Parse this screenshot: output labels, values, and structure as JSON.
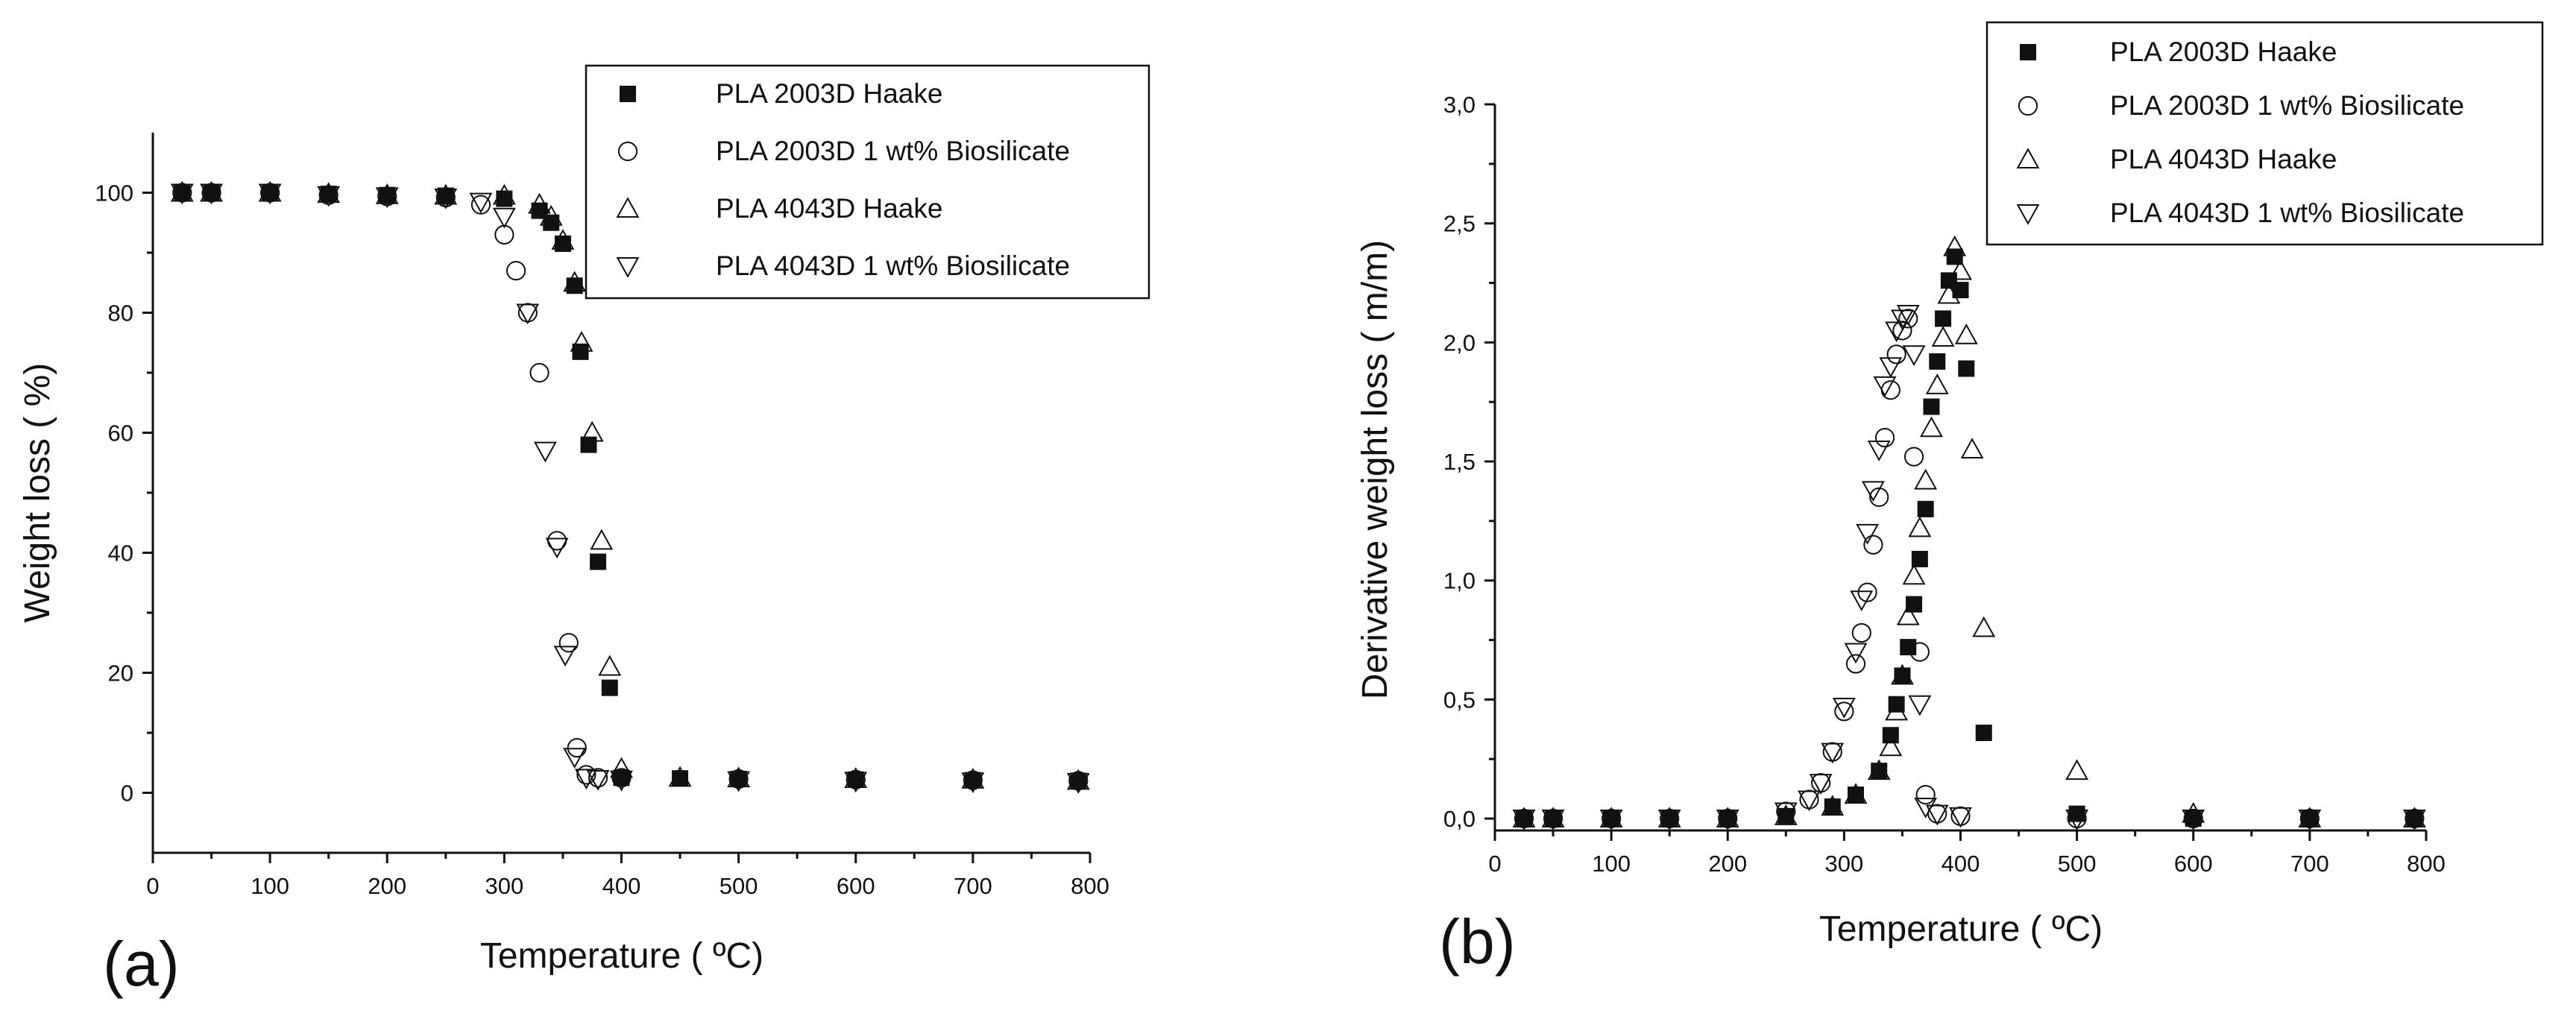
{
  "chart_data": [
    {
      "panel_label": "(a)",
      "type": "scatter",
      "xlabel": "Temperature  ( ºC)",
      "ylabel": "Weight loss  ( %)",
      "xlim": [
        0,
        800
      ],
      "ylim": [
        -10,
        110
      ],
      "x_ticks": [
        "0",
        "100",
        "200",
        "300",
        "400",
        "500",
        "600",
        "700",
        "800"
      ],
      "y_ticks": [
        "0",
        "20",
        "40",
        "60",
        "80",
        "100"
      ],
      "y_tick_values": [
        0,
        20,
        40,
        60,
        80,
        100
      ],
      "grid": false,
      "legend_position": "top-right",
      "series": [
        {
          "name": "PLA 2003D Haake",
          "marker": "filled-square",
          "x": [
            25,
            50,
            100,
            150,
            200,
            250,
            300,
            330,
            340,
            350,
            360,
            365,
            372,
            380,
            390,
            400,
            450,
            500,
            600,
            700,
            790
          ],
          "y": [
            100,
            100,
            100,
            99.8,
            99.6,
            99.5,
            99,
            97,
            95,
            91.5,
            84.5,
            73.5,
            58,
            38.5,
            17.5,
            2.5,
            2.4,
            2.3,
            2.2,
            2.1,
            2
          ]
        },
        {
          "name": "PLA 2003D 1 wt% Biosilicate",
          "marker": "open-circle",
          "x": [
            25,
            50,
            100,
            150,
            200,
            250,
            280,
            300,
            310,
            320,
            330,
            345,
            355,
            362,
            370,
            380,
            400,
            500,
            600,
            700,
            790
          ],
          "y": [
            100,
            100,
            100,
            99.6,
            99.4,
            99.2,
            98,
            93,
            87,
            80,
            70,
            42,
            25,
            7.5,
            3,
            2.5,
            2.5,
            2.3,
            2.2,
            2.1,
            2
          ]
        },
        {
          "name": "PLA 4043D Haake",
          "marker": "open-triangle-up",
          "x": [
            25,
            50,
            100,
            150,
            200,
            250,
            300,
            330,
            340,
            350,
            360,
            366,
            375,
            383,
            390,
            400,
            450,
            500,
            600,
            700,
            790
          ],
          "y": [
            100,
            100,
            100,
            99.8,
            99.6,
            99.5,
            99.5,
            98,
            96,
            92,
            85,
            75,
            60,
            42,
            21,
            4,
            2.5,
            2.4,
            2.3,
            2.2,
            2
          ]
        },
        {
          "name": "PLA 4043D 1 wt% Biosilicate",
          "marker": "open-triangle-down",
          "x": [
            25,
            50,
            100,
            150,
            200,
            250,
            280,
            300,
            320,
            335,
            345,
            352,
            360,
            370,
            380,
            400,
            500,
            600,
            700,
            790
          ],
          "y": [
            100,
            100,
            100,
            99.6,
            99.4,
            99.2,
            98.5,
            96,
            80,
            57,
            41,
            23,
            6,
            2.5,
            2.3,
            2.2,
            2.1,
            2,
            1.9,
            1.8
          ]
        }
      ]
    },
    {
      "panel_label": "(b)",
      "type": "scatter",
      "xlabel": "Temperature  ( ºC)",
      "ylabel": "Derivative weight loss  ( m/m)",
      "xlim": [
        0,
        800
      ],
      "ylim": [
        -0.05,
        3.0
      ],
      "x_ticks": [
        "0",
        "100",
        "200",
        "300",
        "400",
        "500",
        "600",
        "700",
        "800"
      ],
      "y_ticks": [
        "0,0",
        "0,5",
        "1,0",
        "1,5",
        "2,0",
        "2,5",
        "3,0"
      ],
      "y_tick_values": [
        0,
        0.5,
        1.0,
        1.5,
        2.0,
        2.5,
        3.0
      ],
      "grid": false,
      "legend_position": "top-right",
      "series": [
        {
          "name": "PLA 2003D Haake",
          "marker": "filled-square",
          "x": [
            25,
            50,
            100,
            150,
            200,
            250,
            290,
            310,
            330,
            340,
            345,
            350,
            355,
            360,
            365,
            370,
            375,
            380,
            385,
            390,
            395,
            400,
            405,
            420,
            500,
            600,
            700,
            790
          ],
          "y": [
            0,
            0,
            0,
            0,
            0,
            0.01,
            0.05,
            0.1,
            0.2,
            0.35,
            0.48,
            0.6,
            0.72,
            0.9,
            1.09,
            1.3,
            1.73,
            1.92,
            2.1,
            2.26,
            2.36,
            2.22,
            1.89,
            0.36,
            0.02,
            0,
            0,
            0
          ]
        },
        {
          "name": "PLA 2003D 1 wt% Biosilicate",
          "marker": "open-circle",
          "x": [
            25,
            50,
            100,
            150,
            200,
            250,
            270,
            280,
            290,
            300,
            310,
            315,
            320,
            325,
            330,
            335,
            340,
            345,
            350,
            355,
            360,
            365,
            370,
            380,
            400,
            500,
            600,
            700,
            790
          ],
          "y": [
            0,
            0,
            0,
            0,
            0,
            0.03,
            0.08,
            0.15,
            0.28,
            0.45,
            0.65,
            0.78,
            0.95,
            1.15,
            1.35,
            1.6,
            1.8,
            1.95,
            2.05,
            2.1,
            1.52,
            0.7,
            0.1,
            0.02,
            0.01,
            0,
            0,
            0,
            0
          ]
        },
        {
          "name": "PLA 4043D Haake",
          "marker": "open-triangle-up",
          "x": [
            25,
            50,
            100,
            150,
            200,
            250,
            290,
            310,
            330,
            340,
            345,
            350,
            355,
            360,
            365,
            370,
            375,
            380,
            385,
            390,
            395,
            400,
            405,
            410,
            420,
            500,
            600,
            700,
            790
          ],
          "y": [
            0,
            0,
            0,
            0,
            0,
            0.01,
            0.05,
            0.1,
            0.2,
            0.3,
            0.45,
            0.6,
            0.85,
            1.02,
            1.22,
            1.42,
            1.64,
            1.82,
            2.02,
            2.2,
            2.4,
            2.3,
            2.03,
            1.55,
            0.8,
            0.2,
            0.02,
            0,
            0
          ]
        },
        {
          "name": "PLA 4043D 1 wt% Biosilicate",
          "marker": "open-triangle-down",
          "x": [
            25,
            50,
            100,
            150,
            200,
            250,
            270,
            280,
            290,
            300,
            310,
            315,
            320,
            325,
            330,
            335,
            340,
            345,
            350,
            355,
            360,
            365,
            370,
            380,
            400,
            500,
            600,
            700,
            790
          ],
          "y": [
            0,
            0,
            0,
            0,
            0,
            0.03,
            0.08,
            0.15,
            0.28,
            0.47,
            0.7,
            0.92,
            1.2,
            1.38,
            1.55,
            1.82,
            1.9,
            2.05,
            2.1,
            2.12,
            1.95,
            0.48,
            0.05,
            0.02,
            0.01,
            0,
            0,
            0,
            0
          ]
        }
      ]
    }
  ]
}
